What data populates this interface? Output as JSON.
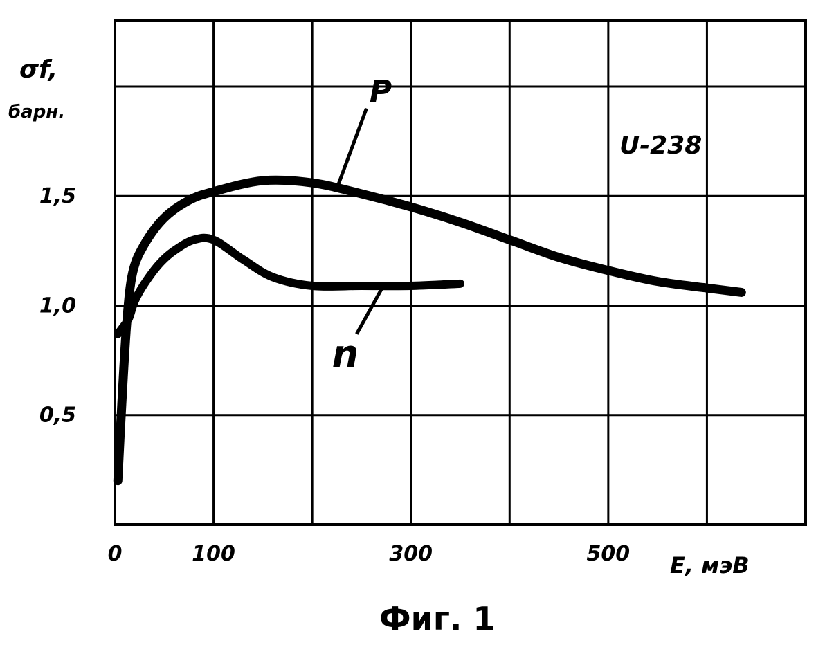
{
  "chart_data": {
    "type": "line",
    "caption": "Фиг. 1",
    "ylabel_symbol": "σf,",
    "ylabel_unit": "барн.",
    "xlabel": "E, мэВ",
    "annotation": "U-238",
    "xlim": [
      0,
      700
    ],
    "ylim": [
      0,
      2.3
    ],
    "x_ticks": [
      {
        "value": 0,
        "label": "0"
      },
      {
        "value": 100,
        "label": "100"
      },
      {
        "value": 300,
        "label": "300"
      },
      {
        "value": 500,
        "label": "500"
      }
    ],
    "y_ticks": [
      {
        "value": 0.5,
        "label": "0,5"
      },
      {
        "value": 1.0,
        "label": "1,0"
      },
      {
        "value": 1.5,
        "label": "1,5"
      }
    ],
    "grid": true,
    "series": [
      {
        "name": "P",
        "x": [
          3,
          7,
          12,
          18,
          30,
          50,
          75,
          100,
          150,
          200,
          250,
          300,
          350,
          400,
          450,
          500,
          550,
          600,
          635
        ],
        "y": [
          0.2,
          0.55,
          0.92,
          1.15,
          1.28,
          1.4,
          1.48,
          1.52,
          1.57,
          1.56,
          1.51,
          1.45,
          1.38,
          1.3,
          1.22,
          1.16,
          1.11,
          1.08,
          1.06
        ]
      },
      {
        "name": "n",
        "x": [
          3,
          8,
          14,
          20,
          30,
          45,
          60,
          80,
          100,
          130,
          160,
          200,
          250,
          300,
          350
        ],
        "y": [
          0.87,
          0.9,
          0.94,
          1.02,
          1.1,
          1.19,
          1.25,
          1.3,
          1.3,
          1.21,
          1.13,
          1.09,
          1.09,
          1.09,
          1.1
        ]
      }
    ]
  }
}
